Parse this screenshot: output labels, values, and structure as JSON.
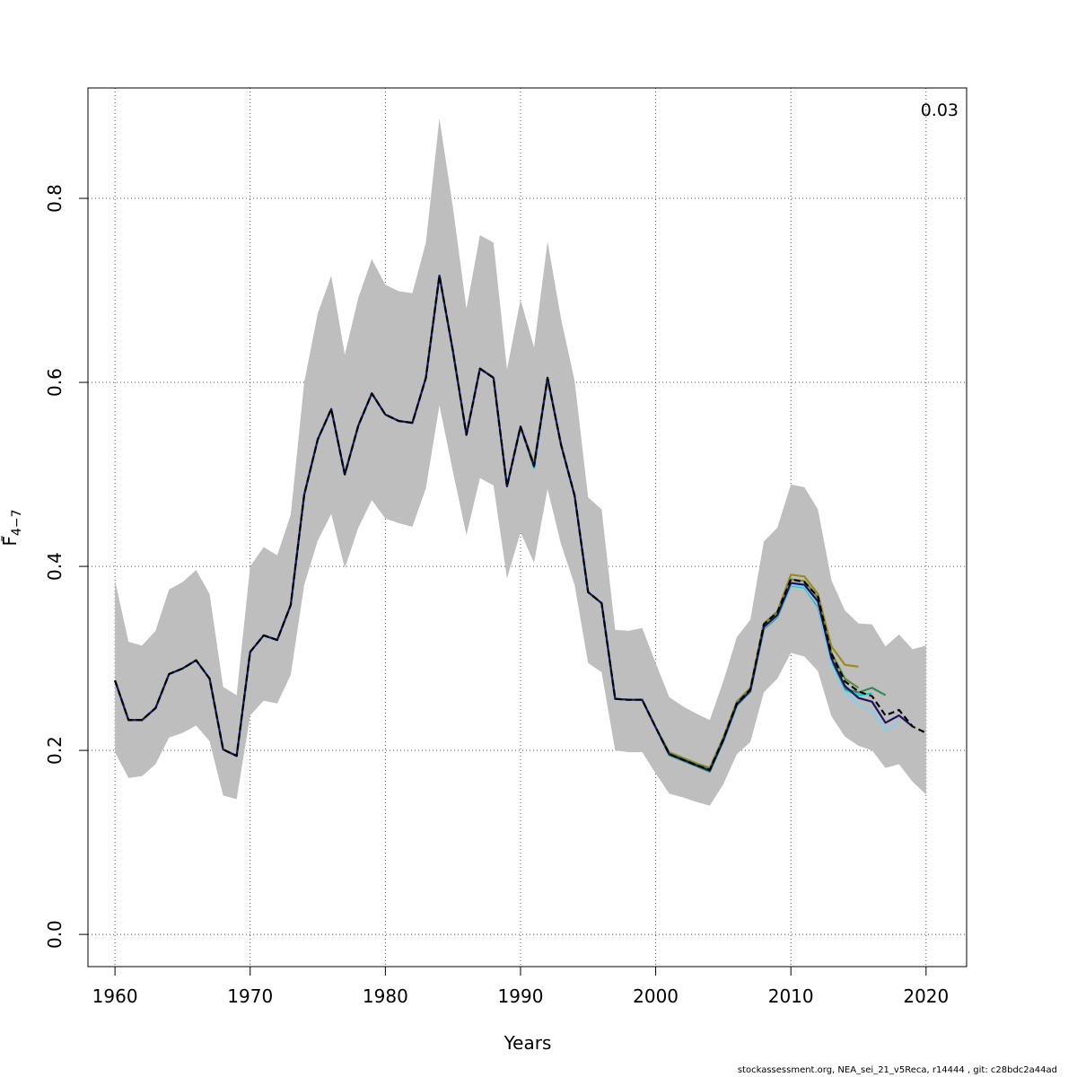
{
  "chart_data": {
    "type": "line",
    "xlabel": "Years",
    "ylabel": "F",
    "ylabel_subscript": "4−7",
    "annotation": "0.03",
    "xlim": [
      1958,
      2023
    ],
    "ylim": [
      -0.035,
      0.92
    ],
    "x_ticks": [
      1960,
      1970,
      1980,
      1990,
      2000,
      2010,
      2020
    ],
    "x_tick_labels": [
      "1960",
      "1970",
      "1980",
      "1990",
      "2000",
      "2010",
      "2020"
    ],
    "y_ticks": [
      0.0,
      0.2,
      0.4,
      0.6,
      0.8
    ],
    "y_tick_labels": [
      "0.0",
      "0.2",
      "0.4",
      "0.6",
      "0.8"
    ],
    "grid": true,
    "confidence_band": {
      "color": "#bebebe",
      "x": [
        1960,
        1961,
        1962,
        1963,
        1964,
        1965,
        1966,
        1967,
        1968,
        1969,
        1970,
        1971,
        1972,
        1973,
        1974,
        1975,
        1976,
        1977,
        1978,
        1979,
        1980,
        1981,
        1982,
        1983,
        1984,
        1985,
        1986,
        1987,
        1988,
        1989,
        1990,
        1991,
        1992,
        1993,
        1994,
        1995,
        1996,
        1997,
        1998,
        1999,
        2000,
        2001,
        2002,
        2003,
        2004,
        2005,
        2006,
        2007,
        2008,
        2009,
        2010,
        2011,
        2012,
        2013,
        2014,
        2015,
        2016,
        2017,
        2018,
        2019,
        2020
      ],
      "upper": [
        0.385,
        0.318,
        0.314,
        0.33,
        0.375,
        0.383,
        0.396,
        0.37,
        0.269,
        0.26,
        0.4,
        0.421,
        0.412,
        0.456,
        0.6,
        0.675,
        0.716,
        0.63,
        0.692,
        0.734,
        0.706,
        0.699,
        0.697,
        0.752,
        0.887,
        0.79,
        0.68,
        0.76,
        0.752,
        0.614,
        0.69,
        0.638,
        0.753,
        0.669,
        0.602,
        0.475,
        0.462,
        0.331,
        0.33,
        0.333,
        0.295,
        0.258,
        0.248,
        0.24,
        0.233,
        0.275,
        0.323,
        0.342,
        0.427,
        0.442,
        0.489,
        0.486,
        0.462,
        0.385,
        0.352,
        0.338,
        0.337,
        0.313,
        0.326,
        0.31,
        0.314
      ],
      "lower": [
        0.198,
        0.17,
        0.172,
        0.185,
        0.214,
        0.219,
        0.227,
        0.21,
        0.151,
        0.147,
        0.238,
        0.254,
        0.251,
        0.282,
        0.38,
        0.428,
        0.457,
        0.398,
        0.442,
        0.472,
        0.452,
        0.447,
        0.443,
        0.485,
        0.575,
        0.503,
        0.434,
        0.496,
        0.488,
        0.387,
        0.437,
        0.404,
        0.484,
        0.424,
        0.38,
        0.295,
        0.285,
        0.2,
        0.198,
        0.198,
        0.175,
        0.153,
        0.149,
        0.144,
        0.14,
        0.163,
        0.196,
        0.209,
        0.263,
        0.278,
        0.306,
        0.302,
        0.286,
        0.237,
        0.215,
        0.205,
        0.2,
        0.181,
        0.185,
        0.166,
        0.152
      ]
    },
    "series": [
      {
        "color": "#000000",
        "dashed": true,
        "x": [
          1960,
          1961,
          1962,
          1963,
          1964,
          1965,
          1966,
          1967,
          1968,
          1969,
          1970,
          1971,
          1972,
          1973,
          1974,
          1975,
          1976,
          1977,
          1978,
          1979,
          1980,
          1981,
          1982,
          1983,
          1984,
          1985,
          1986,
          1987,
          1988,
          1989,
          1990,
          1991,
          1992,
          1993,
          1994,
          1995,
          1996,
          1997,
          1998,
          1999,
          2000,
          2001,
          2002,
          2003,
          2004,
          2005,
          2006,
          2007,
          2008,
          2009,
          2010,
          2011,
          2012,
          2013,
          2014,
          2015,
          2016,
          2017,
          2018,
          2019,
          2020
        ],
        "values": [
          0.276,
          0.233,
          0.233,
          0.246,
          0.283,
          0.289,
          0.298,
          0.278,
          0.201,
          0.194,
          0.307,
          0.325,
          0.32,
          0.358,
          0.478,
          0.538,
          0.571,
          0.5,
          0.553,
          0.588,
          0.565,
          0.558,
          0.556,
          0.605,
          0.716,
          0.634,
          0.543,
          0.615,
          0.605,
          0.487,
          0.552,
          0.509,
          0.605,
          0.532,
          0.477,
          0.372,
          0.36,
          0.256,
          0.255,
          0.255,
          0.225,
          0.196,
          0.19,
          0.184,
          0.179,
          0.212,
          0.251,
          0.266,
          0.337,
          0.35,
          0.386,
          0.383,
          0.367,
          0.305,
          0.275,
          0.264,
          0.259,
          0.238,
          0.244,
          0.226,
          0.219
        ]
      },
      {
        "color": "#1b1464",
        "x": [
          1960,
          1961,
          1962,
          1963,
          1964,
          1965,
          1966,
          1967,
          1968,
          1969,
          1970,
          1971,
          1972,
          1973,
          1974,
          1975,
          1976,
          1977,
          1978,
          1979,
          1980,
          1981,
          1982,
          1983,
          1984,
          1985,
          1986,
          1987,
          1988,
          1989,
          1990,
          1991,
          1992,
          1993,
          1994,
          1995,
          1996,
          1997,
          1998,
          1999,
          2000,
          2001,
          2002,
          2003,
          2004,
          2005,
          2006,
          2007,
          2008,
          2009,
          2010,
          2011,
          2012,
          2013,
          2014,
          2015,
          2016,
          2017,
          2018,
          2019
        ],
        "values": [
          0.276,
          0.233,
          0.233,
          0.246,
          0.283,
          0.289,
          0.298,
          0.278,
          0.201,
          0.194,
          0.307,
          0.325,
          0.32,
          0.358,
          0.478,
          0.538,
          0.571,
          0.5,
          0.553,
          0.588,
          0.565,
          0.558,
          0.556,
          0.605,
          0.716,
          0.634,
          0.543,
          0.615,
          0.605,
          0.487,
          0.552,
          0.509,
          0.605,
          0.532,
          0.477,
          0.372,
          0.36,
          0.256,
          0.255,
          0.255,
          0.225,
          0.196,
          0.19,
          0.184,
          0.178,
          0.211,
          0.25,
          0.265,
          0.334,
          0.347,
          0.382,
          0.38,
          0.362,
          0.3,
          0.27,
          0.257,
          0.253,
          0.23,
          0.238,
          0.226
        ]
      },
      {
        "color": "#87ceeb",
        "x": [
          1960,
          1961,
          1962,
          1963,
          1964,
          1965,
          1966,
          1967,
          1968,
          1969,
          1970,
          1971,
          1972,
          1973,
          1974,
          1975,
          1976,
          1977,
          1978,
          1979,
          1980,
          1981,
          1982,
          1983,
          1984,
          1985,
          1986,
          1987,
          1988,
          1989,
          1990,
          1991,
          1992,
          1993,
          1994,
          1995,
          1996,
          1997,
          1998,
          1999,
          2000,
          2001,
          2002,
          2003,
          2004,
          2005,
          2006,
          2007,
          2008,
          2009,
          2010,
          2011,
          2012,
          2013,
          2014,
          2015,
          2016,
          2017,
          2018
        ],
        "values": [
          0.276,
          0.233,
          0.233,
          0.246,
          0.283,
          0.289,
          0.298,
          0.278,
          0.201,
          0.194,
          0.307,
          0.325,
          0.32,
          0.358,
          0.478,
          0.538,
          0.571,
          0.5,
          0.553,
          0.588,
          0.565,
          0.558,
          0.556,
          0.605,
          0.716,
          0.634,
          0.543,
          0.615,
          0.605,
          0.487,
          0.552,
          0.509,
          0.605,
          0.532,
          0.477,
          0.372,
          0.36,
          0.256,
          0.255,
          0.255,
          0.225,
          0.196,
          0.19,
          0.184,
          0.178,
          0.211,
          0.25,
          0.265,
          0.333,
          0.346,
          0.38,
          0.378,
          0.358,
          0.293,
          0.263,
          0.25,
          0.243,
          0.222,
          0.231
        ]
      },
      {
        "color": "#2e8b57",
        "x": [
          1960,
          1961,
          1962,
          1963,
          1964,
          1965,
          1966,
          1967,
          1968,
          1969,
          1970,
          1971,
          1972,
          1973,
          1974,
          1975,
          1976,
          1977,
          1978,
          1979,
          1980,
          1981,
          1982,
          1983,
          1984,
          1985,
          1986,
          1987,
          1988,
          1989,
          1990,
          1991,
          1992,
          1993,
          1994,
          1995,
          1996,
          1997,
          1998,
          1999,
          2000,
          2001,
          2002,
          2003,
          2004,
          2005,
          2006,
          2007,
          2008,
          2009,
          2010,
          2011,
          2012,
          2013,
          2014,
          2015,
          2016,
          2017
        ],
        "values": [
          0.276,
          0.233,
          0.233,
          0.246,
          0.283,
          0.289,
          0.298,
          0.278,
          0.201,
          0.194,
          0.307,
          0.325,
          0.32,
          0.358,
          0.478,
          0.538,
          0.571,
          0.5,
          0.553,
          0.588,
          0.565,
          0.558,
          0.556,
          0.605,
          0.716,
          0.634,
          0.543,
          0.615,
          0.605,
          0.487,
          0.552,
          0.509,
          0.605,
          0.532,
          0.477,
          0.372,
          0.36,
          0.256,
          0.255,
          0.255,
          0.225,
          0.195,
          0.189,
          0.183,
          0.177,
          0.21,
          0.249,
          0.264,
          0.332,
          0.345,
          0.38,
          0.378,
          0.357,
          0.295,
          0.267,
          0.263,
          0.268,
          0.26
        ]
      },
      {
        "color": "#00ced1",
        "x": [
          1960,
          1961,
          1962,
          1963,
          1964,
          1965,
          1966,
          1967,
          1968,
          1969,
          1970,
          1971,
          1972,
          1973,
          1974,
          1975,
          1976,
          1977,
          1978,
          1979,
          1980,
          1981,
          1982,
          1983,
          1984,
          1985,
          1986,
          1987,
          1988,
          1989,
          1990,
          1991,
          1992,
          1993,
          1994,
          1995,
          1996,
          1997,
          1998,
          1999,
          2000,
          2001,
          2002,
          2003,
          2004,
          2005,
          2006,
          2007,
          2008,
          2009,
          2010,
          2011,
          2012,
          2013,
          2014,
          2015,
          2016
        ],
        "values": [
          0.276,
          0.233,
          0.233,
          0.246,
          0.283,
          0.289,
          0.298,
          0.278,
          0.201,
          0.194,
          0.307,
          0.325,
          0.32,
          0.358,
          0.478,
          0.538,
          0.571,
          0.5,
          0.553,
          0.588,
          0.565,
          0.558,
          0.556,
          0.605,
          0.716,
          0.634,
          0.543,
          0.615,
          0.605,
          0.487,
          0.552,
          0.507,
          0.605,
          0.532,
          0.477,
          0.372,
          0.36,
          0.256,
          0.255,
          0.255,
          0.225,
          0.195,
          0.189,
          0.183,
          0.177,
          0.21,
          0.249,
          0.264,
          0.332,
          0.345,
          0.379,
          0.377,
          0.356,
          0.294,
          0.266,
          0.26,
          0.262
        ]
      },
      {
        "color": "#5e8f2e",
        "x": [
          1960,
          1961,
          1962,
          1963,
          1964,
          1965,
          1966,
          1967,
          1968,
          1969,
          1970,
          1971,
          1972,
          1973,
          1974,
          1975,
          1976,
          1977,
          1978,
          1979,
          1980,
          1981,
          1982,
          1983,
          1984,
          1985,
          1986,
          1987,
          1988,
          1989,
          1990,
          1991,
          1992,
          1993,
          1994,
          1995,
          1996,
          1997,
          1998,
          1999,
          2000,
          2001,
          2002,
          2003,
          2004,
          2005,
          2006,
          2007,
          2008,
          2009,
          2010,
          2011,
          2012,
          2013,
          2014,
          2015
        ],
        "values": [
          0.276,
          0.233,
          0.233,
          0.246,
          0.283,
          0.289,
          0.298,
          0.278,
          0.201,
          0.194,
          0.307,
          0.325,
          0.32,
          0.358,
          0.478,
          0.538,
          0.571,
          0.5,
          0.553,
          0.588,
          0.565,
          0.558,
          0.556,
          0.605,
          0.716,
          0.634,
          0.543,
          0.615,
          0.605,
          0.487,
          0.552,
          0.51,
          0.605,
          0.532,
          0.477,
          0.372,
          0.36,
          0.256,
          0.255,
          0.255,
          0.225,
          0.197,
          0.191,
          0.185,
          0.18,
          0.213,
          0.252,
          0.267,
          0.337,
          0.35,
          0.386,
          0.384,
          0.366,
          0.306,
          0.278,
          0.268
        ]
      },
      {
        "color": "#9a8b1c",
        "x": [
          1960,
          1961,
          1962,
          1963,
          1964,
          1965,
          1966,
          1967,
          1968,
          1969,
          1970,
          1971,
          1972,
          1973,
          1974,
          1975,
          1976,
          1977,
          1978,
          1979,
          1980,
          1981,
          1982,
          1983,
          1984,
          1985,
          1986,
          1987,
          1988,
          1989,
          1990,
          1991,
          1992,
          1993,
          1994,
          1995,
          1996,
          1997,
          1998,
          1999,
          2000,
          2001,
          2002,
          2003,
          2004,
          2005,
          2006,
          2007,
          2008,
          2009,
          2010,
          2011,
          2012,
          2013,
          2014,
          2015
        ],
        "values": [
          0.276,
          0.233,
          0.233,
          0.246,
          0.283,
          0.289,
          0.298,
          0.278,
          0.201,
          0.194,
          0.307,
          0.325,
          0.32,
          0.358,
          0.478,
          0.538,
          0.571,
          0.5,
          0.553,
          0.588,
          0.565,
          0.558,
          0.556,
          0.605,
          0.716,
          0.634,
          0.543,
          0.615,
          0.605,
          0.487,
          0.552,
          0.512,
          0.605,
          0.532,
          0.477,
          0.372,
          0.36,
          0.256,
          0.255,
          0.255,
          0.225,
          0.198,
          0.192,
          0.186,
          0.181,
          0.214,
          0.253,
          0.268,
          0.338,
          0.351,
          0.391,
          0.389,
          0.37,
          0.313,
          0.293,
          0.291
        ]
      }
    ]
  },
  "footer_text": "stockassessment.org, NEA_sei_21_v5Reca, r14444 , git: c28bdc2a44ad"
}
